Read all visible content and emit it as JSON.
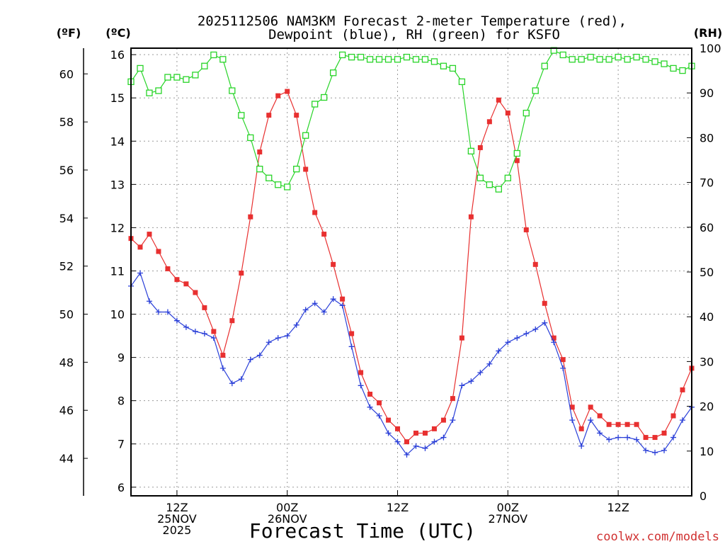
{
  "chart_data": {
    "type": "line",
    "title_line1": "2025112506 NAM3KM Forecast 2-meter Temperature (red),",
    "title_line2": "Dewpoint (blue), RH (green) for KSFO",
    "xlabel": "Forecast Time (UTC)",
    "credit": "coolwx.com/models",
    "units": {
      "left_f": "(ºF)",
      "left_c": "(ºC)",
      "right": "(RH)"
    },
    "x_range": [
      7,
      68
    ],
    "celsius_axis": {
      "range": [
        5.8,
        16.15
      ],
      "ticks": [
        "6",
        "7",
        "8",
        "9",
        "10",
        "11",
        "12",
        "13",
        "14",
        "15",
        "16"
      ],
      "tick_values": [
        6,
        7,
        8,
        9,
        10,
        11,
        12,
        13,
        14,
        15,
        16
      ]
    },
    "fahrenheit_axis": {
      "ticks": [
        "44",
        "46",
        "48",
        "50",
        "52",
        "54",
        "56",
        "58",
        "60"
      ],
      "tick_values": [
        44,
        46,
        48,
        50,
        52,
        54,
        56,
        58,
        60
      ]
    },
    "rh_axis": {
      "range": [
        0,
        100
      ],
      "ticks": [
        "0",
        "10",
        "20",
        "30",
        "40",
        "50",
        "60",
        "70",
        "80",
        "90",
        "100"
      ],
      "tick_values": [
        0,
        10,
        20,
        30,
        40,
        50,
        60,
        70,
        80,
        90,
        100
      ]
    },
    "x_ticks": [
      {
        "hour": 12,
        "lines": [
          "12Z",
          "25NOV",
          "2025"
        ]
      },
      {
        "hour": 24,
        "lines": [
          "00Z",
          "26NOV"
        ]
      },
      {
        "hour": 36,
        "lines": [
          "12Z"
        ]
      },
      {
        "hour": 48,
        "lines": [
          "00Z",
          "27NOV"
        ]
      },
      {
        "hour": 60,
        "lines": [
          "12Z"
        ]
      }
    ],
    "hours": [
      7,
      8,
      9,
      10,
      11,
      12,
      13,
      14,
      15,
      16,
      17,
      18,
      19,
      20,
      21,
      22,
      23,
      24,
      25,
      26,
      27,
      28,
      29,
      30,
      31,
      32,
      33,
      34,
      35,
      36,
      37,
      38,
      39,
      40,
      41,
      42,
      43,
      44,
      45,
      46,
      47,
      48,
      49,
      50,
      51,
      52,
      53,
      54,
      55,
      56,
      57,
      58,
      59,
      60,
      61,
      62,
      63,
      64,
      65,
      66,
      67,
      68
    ],
    "series": [
      {
        "name": "Temperature",
        "color": "#e83030",
        "marker": "filled-square",
        "values": [
          11.75,
          11.55,
          11.85,
          11.45,
          11.05,
          10.8,
          10.7,
          10.5,
          10.15,
          9.6,
          9.05,
          9.85,
          10.95,
          12.25,
          13.75,
          14.6,
          15.05,
          15.15,
          14.6,
          13.35,
          12.35,
          11.85,
          11.15,
          10.35,
          9.55,
          8.65,
          8.15,
          7.95,
          7.55,
          7.35,
          7.05,
          7.25,
          7.25,
          7.35,
          7.55,
          8.05,
          9.45,
          12.25,
          13.85,
          14.45,
          14.95,
          14.65,
          13.55,
          11.95,
          11.15,
          10.25,
          9.45,
          8.95,
          7.85,
          7.35,
          7.85,
          7.65,
          7.45,
          7.45,
          7.45,
          7.45,
          7.15,
          7.15,
          7.25,
          7.65,
          8.25,
          8.75
        ]
      },
      {
        "name": "Dewpoint",
        "color": "#2a3fd8",
        "marker": "plus",
        "values": [
          10.65,
          10.95,
          10.3,
          10.05,
          10.05,
          9.85,
          9.7,
          9.6,
          9.55,
          9.45,
          8.75,
          8.4,
          8.5,
          8.95,
          9.05,
          9.35,
          9.45,
          9.5,
          9.75,
          10.1,
          10.25,
          10.05,
          10.35,
          10.2,
          9.25,
          8.35,
          7.85,
          7.65,
          7.25,
          7.05,
          6.75,
          6.95,
          6.9,
          7.05,
          7.15,
          7.55,
          8.35,
          8.45,
          8.65,
          8.85,
          9.15,
          9.35,
          9.45,
          9.55,
          9.65,
          9.8,
          9.35,
          8.75,
          7.55,
          6.95,
          7.55,
          7.25,
          7.1,
          7.15,
          7.15,
          7.1,
          6.85,
          6.8,
          6.85,
          7.15,
          7.55,
          7.85
        ]
      },
      {
        "name": "RH",
        "color": "#28d428",
        "marker": "open-square",
        "values": [
          92.5,
          95.5,
          90,
          90.5,
          93.5,
          93.5,
          93,
          94,
          96,
          98.5,
          97.5,
          90.5,
          85,
          80,
          73,
          71,
          69.5,
          69,
          73,
          80.5,
          87.5,
          89,
          94.5,
          98.5,
          98,
          98,
          97.5,
          97.5,
          97.5,
          97.5,
          98,
          97.5,
          97.5,
          97,
          96,
          95.5,
          92.5,
          77,
          71,
          69.5,
          68.5,
          71,
          76.5,
          85.5,
          90.5,
          96,
          99.5,
          98.5,
          97.5,
          97.5,
          98,
          97.5,
          97.5,
          98,
          97.5,
          98,
          97.5,
          97,
          96.5,
          95.5,
          95,
          96
        ]
      }
    ]
  }
}
